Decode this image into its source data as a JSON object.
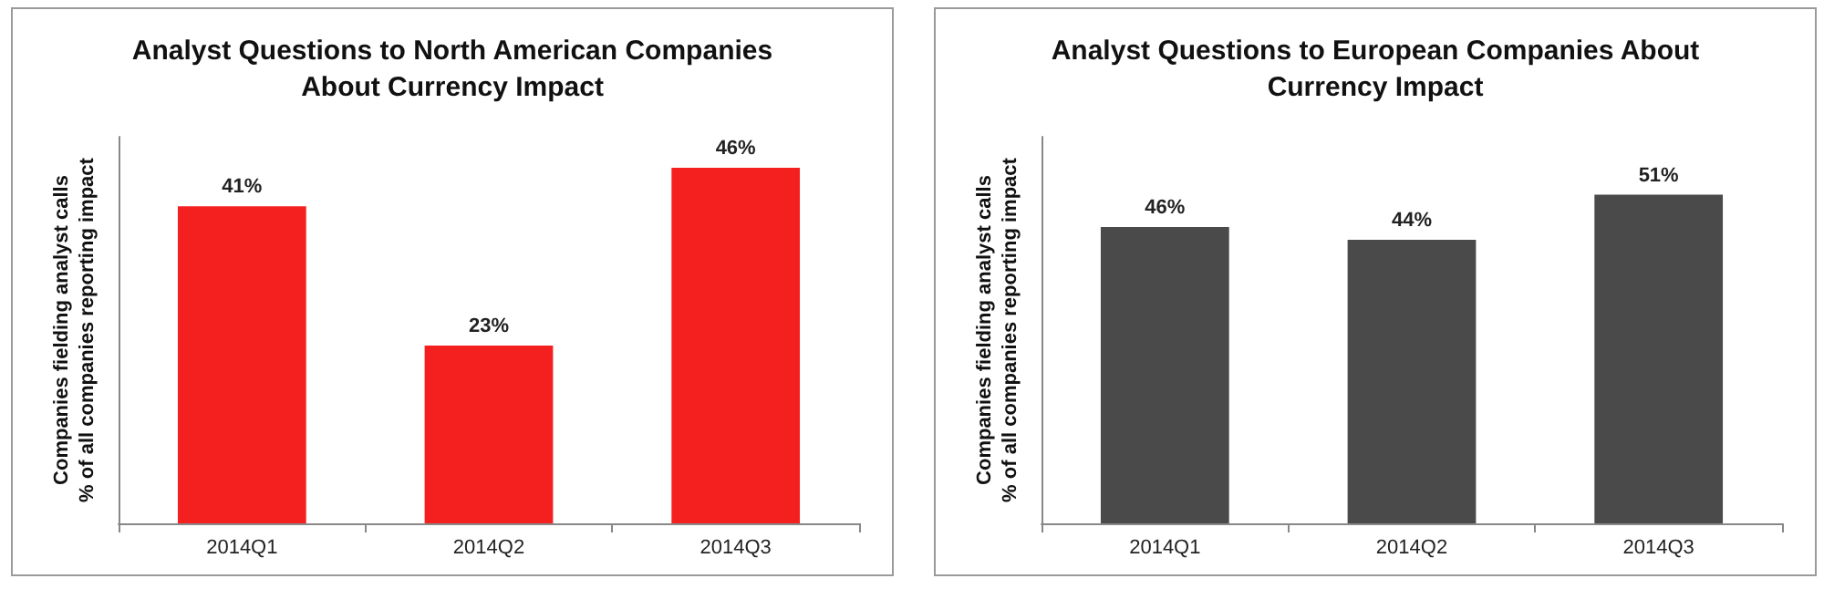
{
  "chart_data": [
    {
      "type": "bar",
      "title": "Analyst Questions to North American Companies\nAbout Currency Impact",
      "ylabel": "Companies fielding analyst calls\n% of all companies reporting impact",
      "categories": [
        "2014Q1",
        "2014Q2",
        "2014Q3"
      ],
      "values": [
        41,
        23,
        46
      ],
      "value_labels": [
        "41%",
        "23%",
        "46%"
      ],
      "color": "#f42020",
      "tick_labels": "x"
    },
    {
      "type": "bar",
      "title": "Analyst Questions to European Companies About\nCurrency Impact",
      "ylabel": "Companies fielding analyst calls\n% of all companies reporting impact",
      "categories": [
        "2014Q1",
        "2014Q2",
        "2014Q3"
      ],
      "values": [
        46,
        44,
        51
      ],
      "value_labels": [
        "46%",
        "44%",
        "51%"
      ],
      "color": "#4a4a4a",
      "tick_labels": "x"
    }
  ]
}
